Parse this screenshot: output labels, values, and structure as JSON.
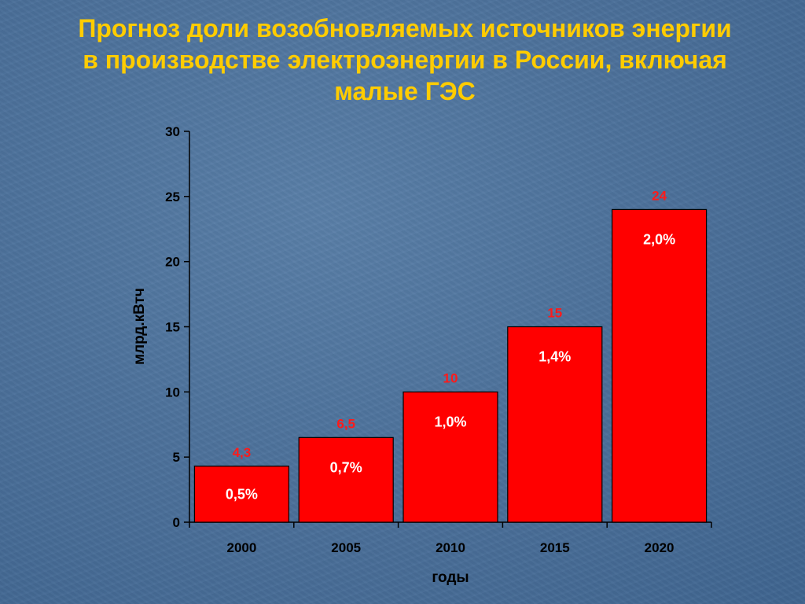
{
  "slide": {
    "title": "Прогноз доли возобновляемых источников энергии в производстве электроэнергии в России, включая малые ГЭС"
  },
  "colors": {
    "background": "#4d729c",
    "title": "#ffcc00",
    "bar_fill": "#ff0000",
    "bar_stroke": "#000000",
    "value_label": "#ff1a1a",
    "inner_label": "#ffffff"
  },
  "chart_data": {
    "type": "bar",
    "title": "Прогноз доли возобновляемых источников энергии в производстве электроэнергии в России, включая малые ГЭС",
    "xlabel": "годы",
    "ylabel": "млрд.кВтч",
    "categories": [
      "2000",
      "2005",
      "2010",
      "2015",
      "2020"
    ],
    "values": [
      4.3,
      6.5,
      10,
      15,
      24
    ],
    "value_labels": [
      "4,3",
      "6,5",
      "10",
      "15",
      "24"
    ],
    "share_labels": [
      "0,5%",
      "0,7%",
      "1,0%",
      "1,4%",
      "2,0%"
    ],
    "ylim": [
      0,
      30
    ],
    "yticks": [
      0,
      5,
      10,
      15,
      20,
      25,
      30
    ],
    "grid": false,
    "legend": "none"
  }
}
